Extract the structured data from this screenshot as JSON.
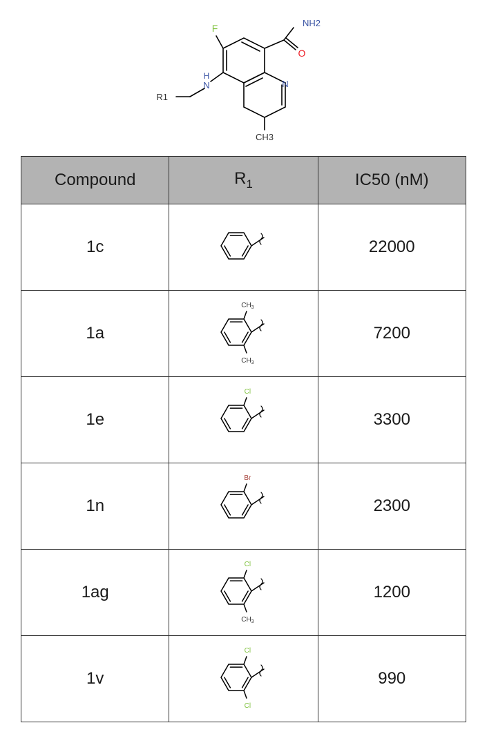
{
  "scaffold": {
    "atom_labels": {
      "F": "F",
      "NH2": "NH2",
      "O": "O",
      "H": "H",
      "N_ring": "N",
      "N_amine": "N",
      "CH3": "CH3",
      "R1": "R1"
    },
    "atom_colors": {
      "F": "#82c341",
      "N": "#3953a4",
      "H": "#3953a4",
      "O": "#ed1c24",
      "C_label": "#333333",
      "bond": "#000000"
    },
    "font_size_pt": 12
  },
  "table": {
    "header_bg": "#b3b3b3",
    "border_color": "#333333",
    "cell_font_size_pt": 24,
    "header_font_size_pt": 24,
    "columns": [
      "Compound",
      "R1",
      "IC50 (nM)"
    ],
    "column_widths_pct": [
      33.3,
      33.4,
      33.3
    ],
    "rows": [
      {
        "compound": "1c",
        "ic50": "22000",
        "r1": {
          "type": "phenyl",
          "subs": []
        }
      },
      {
        "compound": "1a",
        "ic50": "7200",
        "r1": {
          "type": "phenyl",
          "subs": [
            {
              "pos": "ortho_top",
              "label": "CH3",
              "color": "#333333"
            },
            {
              "pos": "ortho_bot",
              "label": "CH3",
              "color": "#333333"
            }
          ]
        }
      },
      {
        "compound": "1e",
        "ic50": "3300",
        "r1": {
          "type": "phenyl",
          "subs": [
            {
              "pos": "ortho_top",
              "label": "Cl",
              "color": "#82c341"
            }
          ]
        }
      },
      {
        "compound": "1n",
        "ic50": "2300",
        "r1": {
          "type": "phenyl",
          "subs": [
            {
              "pos": "ortho_top",
              "label": "Br",
              "color": "#a6423a"
            }
          ]
        }
      },
      {
        "compound": "1ag",
        "ic50": "1200",
        "r1": {
          "type": "phenyl",
          "subs": [
            {
              "pos": "ortho_top",
              "label": "Cl",
              "color": "#82c341"
            },
            {
              "pos": "ortho_bot",
              "label": "CH3",
              "color": "#333333"
            }
          ]
        }
      },
      {
        "compound": "1v",
        "ic50": "990",
        "r1": {
          "type": "phenyl",
          "subs": [
            {
              "pos": "ortho_top",
              "label": "Cl",
              "color": "#82c341"
            },
            {
              "pos": "ortho_bot",
              "label": "Cl",
              "color": "#82c341"
            }
          ]
        }
      }
    ]
  }
}
